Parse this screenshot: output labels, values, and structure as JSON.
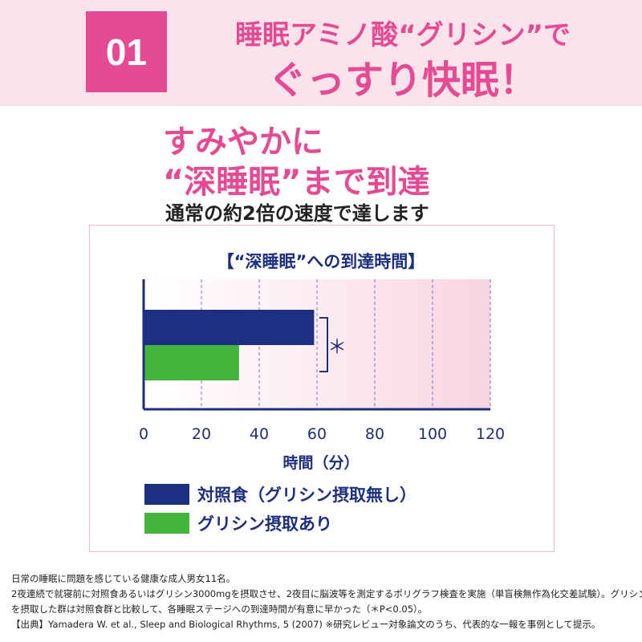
{
  "header": {
    "badge": "01",
    "line1": "睡眠アミノ酸“グリシン”で",
    "line2": "ぐっすり快眠！"
  },
  "catchcopy": {
    "line1": "すみやかに",
    "line2": "“深睡眠”まで到達",
    "sub": "通常の約2倍の速度で達します"
  },
  "colors": {
    "accent": "#e64a93",
    "navy": "#1d2f80",
    "green": "#41b53b",
    "header_bg": "#fbe3ec"
  },
  "chart_data": {
    "type": "bar",
    "orientation": "horizontal",
    "title": "【“深睡眠”への到達時間】",
    "xlabel": "時間（分）",
    "xlim": [
      0,
      120
    ],
    "xticks": [
      0,
      20,
      40,
      60,
      80,
      100,
      120
    ],
    "series": [
      {
        "name": "対照食（グリシン摂取無し）",
        "values": [
          59
        ],
        "color": "#1d2f80"
      },
      {
        "name": "グリシン摂取あり",
        "values": [
          33
        ],
        "color": "#41b53b"
      }
    ],
    "annotation": "＊",
    "grid": "vertical dashed",
    "legend_position": "bottom-left"
  },
  "footnotes": [
    "日常の睡眠に問題を感じている健康な成人男女11名。",
    "2夜連続で就寝前に対照食あるいはグリシン3000mgを摂取させ、2夜目に脳波等を測定するポリグラフ検査を実施（単盲検無作為化交差試験）。グリシン",
    "を摂取した群は対照食群と比較して、各睡眠ステージへの到達時間が有意に早かった（＊P<0.05）。",
    "【出典】Yamadera W. et al., Sleep and Biological Rhythms, 5 (2007) ※研究レビュー対象論文のうち、代表的な一報を事例として提示。"
  ]
}
